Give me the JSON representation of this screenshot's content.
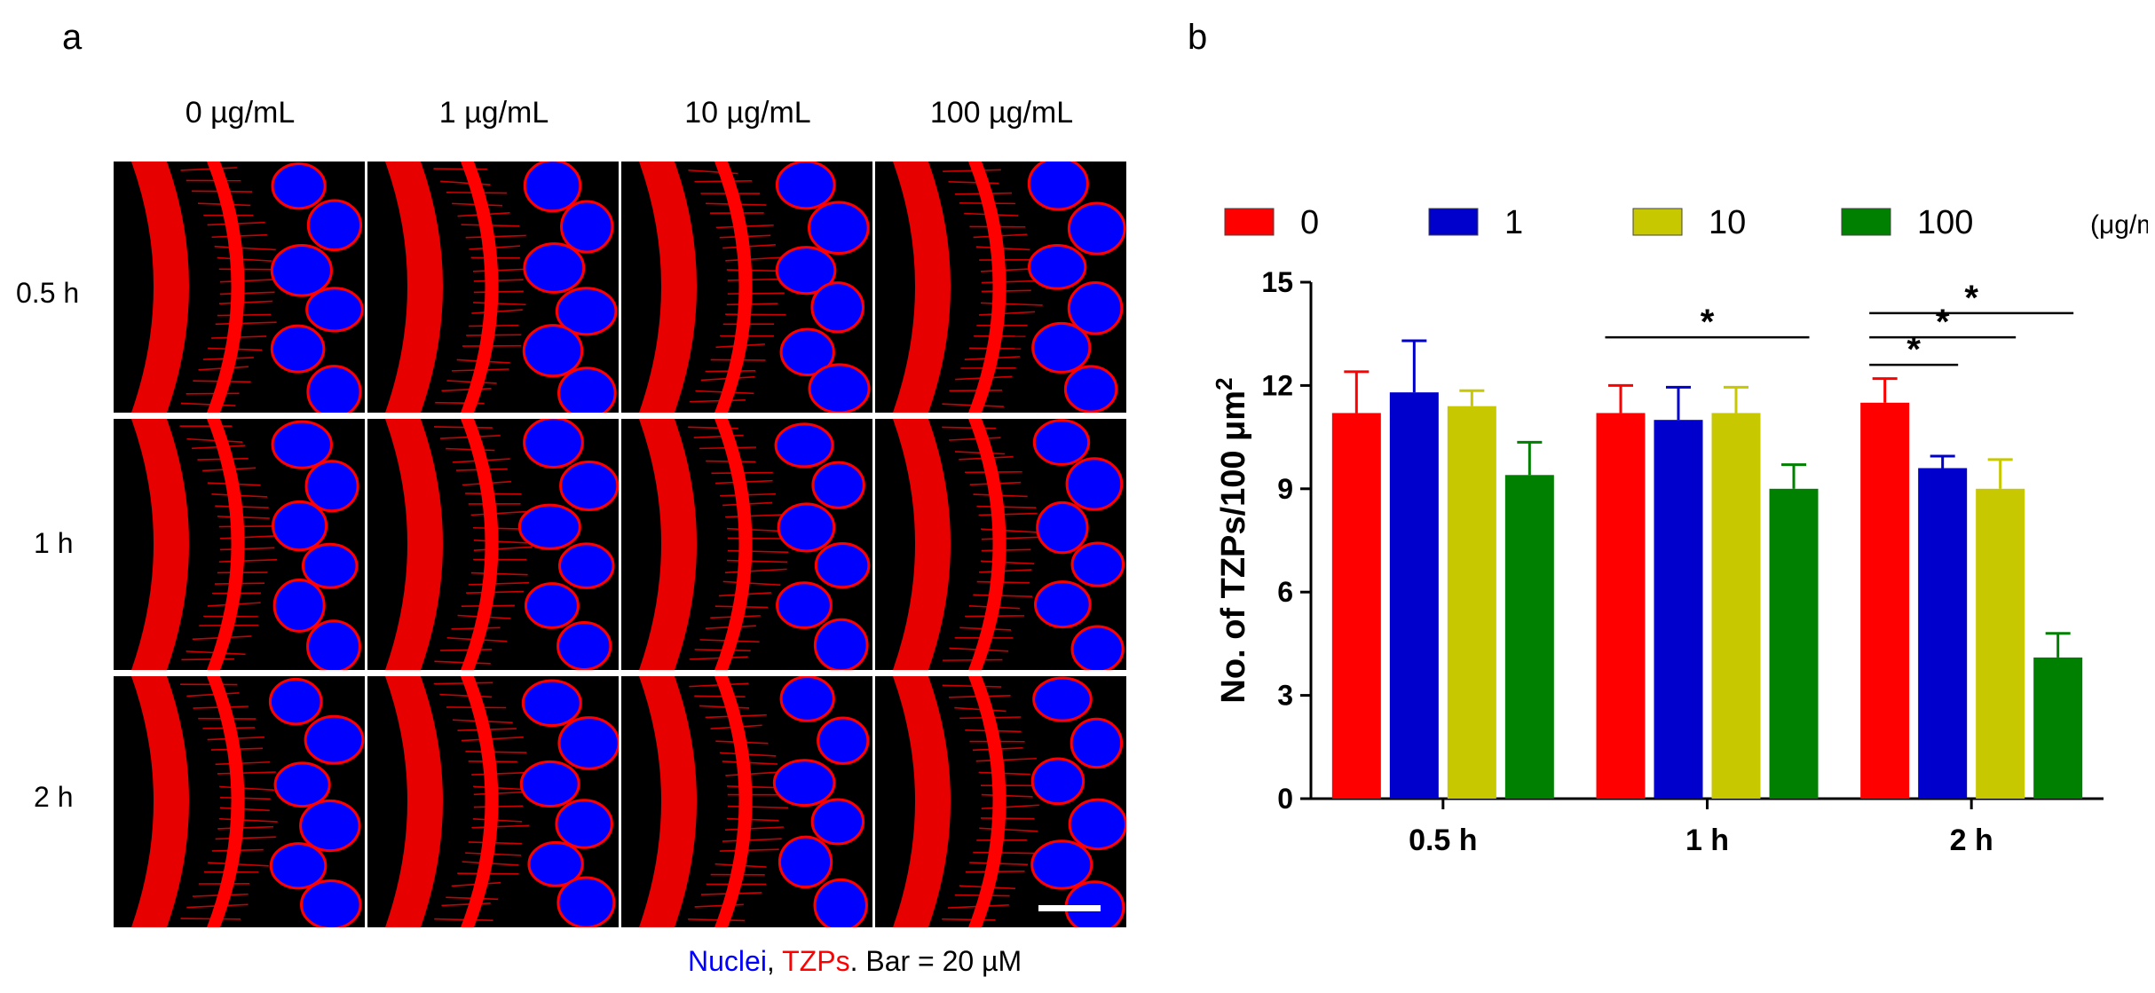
{
  "panel_a": {
    "letter": "a",
    "columns": [
      "0 µg/mL",
      "1 µg/mL",
      "10 µg/mL",
      "100 µg/mL"
    ],
    "rows": [
      "0.5 h",
      "1 h",
      "2 h"
    ],
    "caption": {
      "nuclei": "Nuclei",
      "sep": ", ",
      "tzps": "TZPs",
      "rest": ". Bar = 20  µM"
    },
    "colors": {
      "nuclei": "#0000ff",
      "tzps": "#ff0000",
      "background": "#000000"
    }
  },
  "panel_b": {
    "letter": "b"
  },
  "chart_data": {
    "type": "bar",
    "categories": [
      "0.5 h",
      "1 h",
      "2 h"
    ],
    "ylabel": "No. of TZPs/100 μm",
    "ylabel_superscript": "2",
    "ylim": [
      0,
      15
    ],
    "yticks": [
      0,
      3,
      6,
      9,
      12,
      15
    ],
    "legend_position": "top",
    "legend_unit": "(μg/mL)",
    "series": [
      {
        "name": "0",
        "color": "#ff0000",
        "values": [
          11.2,
          11.2,
          11.5
        ],
        "errors": [
          1.2,
          0.8,
          0.7
        ]
      },
      {
        "name": "1",
        "color": "#0000cc",
        "values": [
          11.8,
          11.0,
          9.6
        ],
        "errors": [
          1.5,
          0.95,
          0.35
        ]
      },
      {
        "name": "10",
        "color": "#c8c800",
        "values": [
          11.4,
          11.2,
          9.0
        ],
        "errors": [
          0.45,
          0.75,
          0.85
        ]
      },
      {
        "name": "100",
        "color": "#008000",
        "values": [
          9.4,
          9.0,
          4.1
        ],
        "errors": [
          0.95,
          0.7,
          0.7
        ]
      }
    ],
    "significance": [
      {
        "label": "*",
        "category": 1,
        "from_series": 0,
        "to_series": 3,
        "y": 13.4
      },
      {
        "label": "*",
        "category": 2,
        "from_series": 0,
        "to_series": 1,
        "y": 12.6
      },
      {
        "label": "*",
        "category": 2,
        "from_series": 0,
        "to_series": 2,
        "y": 13.4
      },
      {
        "label": "*",
        "category": 2,
        "from_series": 0,
        "to_series": 3,
        "y": 14.1
      }
    ]
  }
}
